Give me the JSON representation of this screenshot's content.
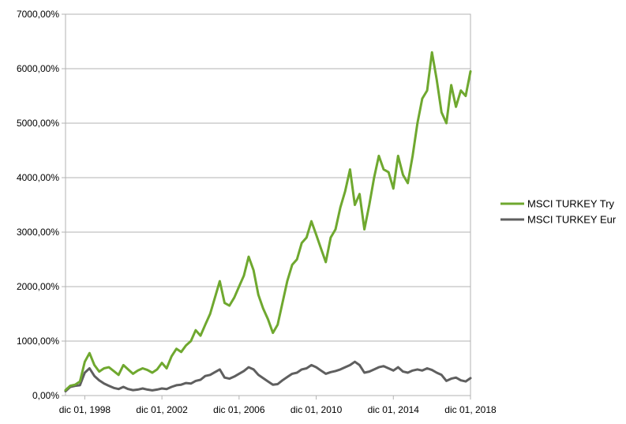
{
  "chart_data": {
    "type": "line",
    "title": "",
    "xlabel": "",
    "ylabel": "",
    "x_range": [
      "1997-12-01",
      "2018-12-01"
    ],
    "ylim": [
      0,
      7000
    ],
    "y_ticks": [
      0,
      1000,
      2000,
      3000,
      4000,
      5000,
      6000,
      7000
    ],
    "y_tick_labels": [
      "0,00%",
      "1000,00%",
      "2000,00%",
      "3000,00%",
      "4000,00%",
      "5000,00%",
      "6000,00%",
      "7000,00%"
    ],
    "x_ticks": [
      "1998-12-01",
      "2002-12-01",
      "2006-12-01",
      "2010-12-01",
      "2014-12-01",
      "2018-12-01"
    ],
    "x_tick_labels": [
      "dic 01, 1998",
      "dic 01, 2002",
      "dic 01, 2006",
      "dic 01, 2010",
      "dic 01, 2014",
      "dic 01, 2018"
    ],
    "grid": "horizontal",
    "legend_position": "right",
    "series": [
      {
        "name": "MSCI TURKEY Try",
        "color": "#6fa82f",
        "points": [
          [
            "1997-12-01",
            100
          ],
          [
            "1998-03-01",
            180
          ],
          [
            "1998-06-01",
            200
          ],
          [
            "1998-09-01",
            260
          ],
          [
            "1998-12-01",
            620
          ],
          [
            "1999-03-01",
            780
          ],
          [
            "1999-06-01",
            560
          ],
          [
            "1999-09-01",
            440
          ],
          [
            "1999-12-01",
            500
          ],
          [
            "2000-03-01",
            520
          ],
          [
            "2000-06-01",
            450
          ],
          [
            "2000-09-01",
            380
          ],
          [
            "2000-12-01",
            560
          ],
          [
            "2001-03-01",
            480
          ],
          [
            "2001-06-01",
            400
          ],
          [
            "2001-09-01",
            460
          ],
          [
            "2001-12-01",
            500
          ],
          [
            "2002-03-01",
            470
          ],
          [
            "2002-06-01",
            420
          ],
          [
            "2002-09-01",
            480
          ],
          [
            "2002-12-01",
            600
          ],
          [
            "2003-03-01",
            500
          ],
          [
            "2003-06-01",
            720
          ],
          [
            "2003-09-01",
            860
          ],
          [
            "2003-12-01",
            800
          ],
          [
            "2004-03-01",
            920
          ],
          [
            "2004-06-01",
            1000
          ],
          [
            "2004-09-01",
            1200
          ],
          [
            "2004-12-01",
            1100
          ],
          [
            "2005-03-01",
            1300
          ],
          [
            "2005-06-01",
            1500
          ],
          [
            "2005-09-01",
            1800
          ],
          [
            "2005-12-01",
            2100
          ],
          [
            "2006-03-01",
            1700
          ],
          [
            "2006-06-01",
            1650
          ],
          [
            "2006-09-01",
            1800
          ],
          [
            "2006-12-01",
            2000
          ],
          [
            "2007-03-01",
            2200
          ],
          [
            "2007-06-01",
            2550
          ],
          [
            "2007-09-01",
            2300
          ],
          [
            "2007-12-01",
            1850
          ],
          [
            "2008-03-01",
            1600
          ],
          [
            "2008-06-01",
            1400
          ],
          [
            "2008-09-01",
            1150
          ],
          [
            "2008-12-01",
            1300
          ],
          [
            "2009-03-01",
            1700
          ],
          [
            "2009-06-01",
            2100
          ],
          [
            "2009-09-01",
            2400
          ],
          [
            "2009-12-01",
            2500
          ],
          [
            "2010-03-01",
            2800
          ],
          [
            "2010-06-01",
            2900
          ],
          [
            "2010-09-01",
            3200
          ],
          [
            "2010-12-01",
            2950
          ],
          [
            "2011-03-01",
            2700
          ],
          [
            "2011-06-01",
            2450
          ],
          [
            "2011-09-01",
            2900
          ],
          [
            "2011-12-01",
            3050
          ],
          [
            "2012-03-01",
            3450
          ],
          [
            "2012-06-01",
            3750
          ],
          [
            "2012-09-01",
            4150
          ],
          [
            "2012-12-01",
            3500
          ],
          [
            "2013-03-01",
            3700
          ],
          [
            "2013-06-01",
            3050
          ],
          [
            "2013-09-01",
            3500
          ],
          [
            "2013-12-01",
            4000
          ],
          [
            "2014-03-01",
            4400
          ],
          [
            "2014-06-01",
            4150
          ],
          [
            "2014-09-01",
            4100
          ],
          [
            "2014-12-01",
            3800
          ],
          [
            "2015-03-01",
            4400
          ],
          [
            "2015-06-01",
            4050
          ],
          [
            "2015-09-01",
            3900
          ],
          [
            "2015-12-01",
            4400
          ],
          [
            "2016-03-01",
            5000
          ],
          [
            "2016-06-01",
            5450
          ],
          [
            "2016-09-01",
            5600
          ],
          [
            "2016-12-01",
            6300
          ],
          [
            "2017-03-01",
            5800
          ],
          [
            "2017-06-01",
            5200
          ],
          [
            "2017-09-01",
            5000
          ],
          [
            "2017-12-01",
            5700
          ],
          [
            "2018-03-01",
            5300
          ],
          [
            "2018-06-01",
            5600
          ],
          [
            "2018-09-01",
            5500
          ],
          [
            "2018-12-01",
            5950
          ]
        ]
      },
      {
        "name": "MSCI TURKEY Eur",
        "color": "#5f5f5f",
        "points": [
          [
            "1997-12-01",
            80
          ],
          [
            "1998-03-01",
            160
          ],
          [
            "1998-06-01",
            180
          ],
          [
            "1998-09-01",
            190
          ],
          [
            "1998-12-01",
            420
          ],
          [
            "1999-03-01",
            500
          ],
          [
            "1999-06-01",
            360
          ],
          [
            "1999-09-01",
            280
          ],
          [
            "1999-12-01",
            220
          ],
          [
            "2000-03-01",
            180
          ],
          [
            "2000-06-01",
            140
          ],
          [
            "2000-09-01",
            120
          ],
          [
            "2000-12-01",
            160
          ],
          [
            "2001-03-01",
            120
          ],
          [
            "2001-06-01",
            100
          ],
          [
            "2001-09-01",
            110
          ],
          [
            "2001-12-01",
            130
          ],
          [
            "2002-03-01",
            110
          ],
          [
            "2002-06-01",
            95
          ],
          [
            "2002-09-01",
            110
          ],
          [
            "2002-12-01",
            130
          ],
          [
            "2003-03-01",
            120
          ],
          [
            "2003-06-01",
            160
          ],
          [
            "2003-09-01",
            190
          ],
          [
            "2003-12-01",
            200
          ],
          [
            "2004-03-01",
            230
          ],
          [
            "2004-06-01",
            220
          ],
          [
            "2004-09-01",
            270
          ],
          [
            "2004-12-01",
            290
          ],
          [
            "2005-03-01",
            360
          ],
          [
            "2005-06-01",
            380
          ],
          [
            "2005-09-01",
            430
          ],
          [
            "2005-12-01",
            480
          ],
          [
            "2006-03-01",
            330
          ],
          [
            "2006-06-01",
            310
          ],
          [
            "2006-09-01",
            350
          ],
          [
            "2006-12-01",
            400
          ],
          [
            "2007-03-01",
            450
          ],
          [
            "2007-06-01",
            520
          ],
          [
            "2007-09-01",
            480
          ],
          [
            "2007-12-01",
            380
          ],
          [
            "2008-03-01",
            320
          ],
          [
            "2008-06-01",
            260
          ],
          [
            "2008-09-01",
            200
          ],
          [
            "2008-12-01",
            210
          ],
          [
            "2009-03-01",
            280
          ],
          [
            "2009-06-01",
            340
          ],
          [
            "2009-09-01",
            400
          ],
          [
            "2009-12-01",
            420
          ],
          [
            "2010-03-01",
            480
          ],
          [
            "2010-06-01",
            500
          ],
          [
            "2010-09-01",
            560
          ],
          [
            "2010-12-01",
            520
          ],
          [
            "2011-03-01",
            460
          ],
          [
            "2011-06-01",
            400
          ],
          [
            "2011-09-01",
            430
          ],
          [
            "2011-12-01",
            450
          ],
          [
            "2012-03-01",
            480
          ],
          [
            "2012-06-01",
            520
          ],
          [
            "2012-09-01",
            560
          ],
          [
            "2012-12-01",
            620
          ],
          [
            "2013-03-01",
            560
          ],
          [
            "2013-06-01",
            420
          ],
          [
            "2013-09-01",
            440
          ],
          [
            "2013-12-01",
            480
          ],
          [
            "2014-03-01",
            520
          ],
          [
            "2014-06-01",
            540
          ],
          [
            "2014-09-01",
            500
          ],
          [
            "2014-12-01",
            460
          ],
          [
            "2015-03-01",
            520
          ],
          [
            "2015-06-01",
            440
          ],
          [
            "2015-09-01",
            420
          ],
          [
            "2015-12-01",
            460
          ],
          [
            "2016-03-01",
            480
          ],
          [
            "2016-06-01",
            460
          ],
          [
            "2016-09-01",
            500
          ],
          [
            "2016-12-01",
            470
          ],
          [
            "2017-03-01",
            420
          ],
          [
            "2017-06-01",
            380
          ],
          [
            "2017-09-01",
            270
          ],
          [
            "2017-12-01",
            310
          ],
          [
            "2018-03-01",
            330
          ],
          [
            "2018-06-01",
            280
          ],
          [
            "2018-09-01",
            260
          ],
          [
            "2018-12-01",
            320
          ]
        ]
      }
    ]
  }
}
